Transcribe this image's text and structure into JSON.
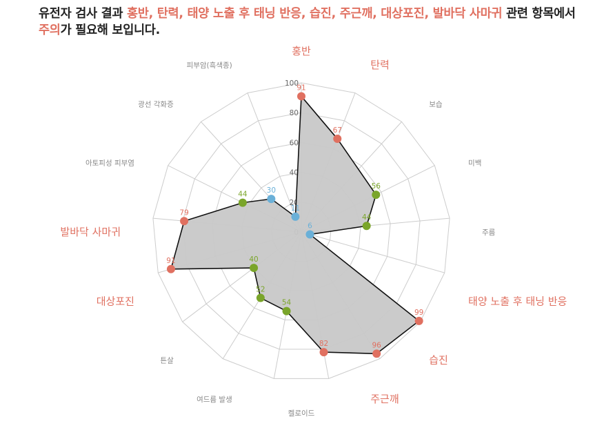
{
  "headline": {
    "line1_prefix": "유전자 검사 결과 ",
    "line1_highlight": "홍반, 탄력, 태양 노출 후 태닝 반응, 습진, 주근깨, 대상포진, 발바닥 사마귀",
    "line1_suffix": " 관련 항목에서",
    "line2_highlight": "주의",
    "line2_suffix": "가 필요해 보입니다."
  },
  "colors": {
    "risk": "#e07060",
    "normal": "#7aa52a",
    "good": "#6ab0d8",
    "label_default": "#888888",
    "fill": "#c8c8c8",
    "grid": "#cccccc"
  },
  "chart_data": {
    "type": "radar",
    "rmax": 100,
    "ticks": [
      "0",
      "20",
      "40",
      "60",
      "80",
      "100"
    ],
    "categories": [
      {
        "label": "홍반",
        "value": 91,
        "status": "risk"
      },
      {
        "label": "탄력",
        "value": 67,
        "status": "risk"
      },
      {
        "label": "보습",
        "value": null,
        "status": "none"
      },
      {
        "label": "미백",
        "value": 56,
        "status": "normal"
      },
      {
        "label": "주름",
        "value": 44,
        "status": "normal"
      },
      {
        "label": "태양 노출 후 태닝 반응",
        "value": 6,
        "status": "good"
      },
      {
        "label": "습진",
        "value": 99,
        "status": "risk"
      },
      {
        "label": "주근깨",
        "value": 96,
        "status": "risk"
      },
      {
        "label": "켈로이드",
        "value": 82,
        "status": "risk"
      },
      {
        "label": "여드름 발생",
        "value": 54,
        "status": "normal"
      },
      {
        "label": "튼살",
        "value": 52,
        "status": "normal"
      },
      {
        "label": "대상포진",
        "value": 40,
        "status": "normal"
      },
      {
        "label": "발바닥 사마귀",
        "value": 91,
        "status": "risk"
      },
      {
        "label": "아토피성 피부염",
        "value": 79,
        "status": "risk"
      },
      {
        "label": "광선 각화증",
        "value": 44,
        "status": "normal"
      },
      {
        "label": "피부암(흑색종)",
        "value": 30,
        "status": "good"
      },
      {
        "label": "",
        "value": 11,
        "status": "good"
      }
    ],
    "display_labels": [
      {
        "text": "홍반",
        "status": "risk"
      },
      {
        "text": "탄력",
        "status": "risk"
      },
      {
        "text": "보습",
        "status": "none"
      },
      {
        "text": "미백",
        "status": "none"
      },
      {
        "text": "주름",
        "status": "none"
      },
      {
        "text": "태양 노출 후 태닝 반응",
        "status": "risk"
      },
      {
        "text": "습진",
        "status": "risk"
      },
      {
        "text": "주근깨",
        "status": "risk"
      },
      {
        "text": "켈로이드",
        "status": "none"
      },
      {
        "text": "여드름 발생",
        "status": "none"
      },
      {
        "text": "튼살",
        "status": "none"
      },
      {
        "text": "대상포진",
        "status": "risk"
      },
      {
        "text": "발바닥 사마귀",
        "status": "risk"
      },
      {
        "text": "아토피성 피부염",
        "status": "none"
      },
      {
        "text": "광선 각화증",
        "status": "none"
      },
      {
        "text": "피부암(흑색종)",
        "status": "none"
      }
    ]
  }
}
